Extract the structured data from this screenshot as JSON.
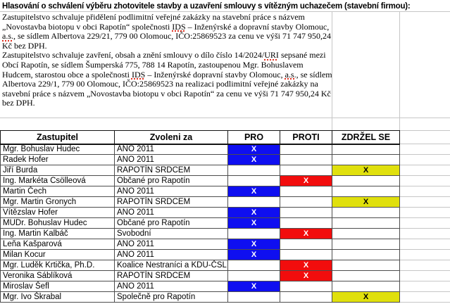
{
  "title": "Hlasování o schválení výběru zhotovitele stavby a uzavření smlouvy s vítězným uchazečem (stavební firmou):",
  "paragraphs": [
    "Zastupitelstvo schvaluje přidělení podlimitní veřejné zakázky na stavební práce s názvem „Novostavba biotopu v obci Rapotín“ společnosti IDS – Inženýrské a dopravní stavby Olomouc, a.s., se sídlem Albertova 229/21, 779 00 Olomouc, IČO:25869523 za cenu ve výši 71 747 950,24 Kč bez DPH.",
    "Zastupitelstvo schvaluje zavření, obsah a znění smlouvy o dílo číslo 14/2024/URI sepsané mezi Obcí Rapotín, se sídlem Šumperská 775, 788 14 Rapotín, zastoupenou Mgr. Bohuslavem Hudcem, starostou obce a společnosti IDS – Inženýrské dopravní stavby Olomouc, a.s., se sídlem Albertova 229/1, 779 00 Olomouc, IČO:25869523 na realizaci podlimitní veřejné zakázky na stavební práce s názvem „Novostavba biotopu v obci Rapotín“ za cenu ve výši 71 747 950,24 Kč bez DPH."
  ],
  "spellcheck_words": [
    "IDS",
    "a.s.",
    "URI"
  ],
  "table": {
    "headers": [
      "Zastupitel",
      "Zvoleni za",
      "PRO",
      "PROTI",
      "ZDRŽEL SE"
    ],
    "mark": "X",
    "rows": [
      {
        "name": "Mgr. Bohuslav Hudec",
        "party": "ANO 2011",
        "vote": "pro"
      },
      {
        "name": "Radek Hofer",
        "party": "ANO 2011",
        "vote": "pro"
      },
      {
        "name": "Jiří Burda",
        "party": "RAPOTÍN SRDCEM",
        "vote": "zdrzel"
      },
      {
        "name": "Ing. Markéta Csölleová",
        "party": "Občané pro Rapotín",
        "vote": "proti"
      },
      {
        "name": "Martin Čech",
        "party": "ANO 2011",
        "vote": "pro"
      },
      {
        "name": "Mgr. Martin Gronych",
        "party": "RAPOTÍN SRDCEM",
        "vote": "zdrzel"
      },
      {
        "name": "Vítězslav Hofer",
        "party": "ANO 2011",
        "vote": "pro"
      },
      {
        "name": "MUDr. Bohuslav Hudec",
        "party": "Občané pro Rapotín",
        "vote": "pro"
      },
      {
        "name": "Ing. Martin Kalbáč",
        "party": "Svobodní",
        "vote": "proti"
      },
      {
        "name": "Leňa Kašparová",
        "party": "ANO 2011",
        "vote": "pro"
      },
      {
        "name": "Milan Kocur",
        "party": "ANO 2011",
        "vote": "pro"
      },
      {
        "name": "Mgr. Luděk Krtička, Ph.D.",
        "party": "Koalice Nestraníci a KDU-ČSL",
        "vote": "proti"
      },
      {
        "name": "Veronika Sáblíková",
        "party": "RAPOTÍN SRDCEM",
        "vote": "proti"
      },
      {
        "name": "Miroslav Šefl",
        "party": "ANO 2011",
        "vote": "pro"
      },
      {
        "name": "Mgr. Ivo Škrabal",
        "party": "Společně pro Rapotín",
        "vote": "zdrzel"
      }
    ]
  },
  "colors": {
    "pro_fill": "#0f0ff0",
    "proti_fill": "#f20d0d",
    "zdrzel_fill": "#e0e00d",
    "pro_mark": "#ffffff",
    "proti_mark": "#ffffff",
    "zdrzel_mark": "#000000",
    "gridline": "#c6c6c6",
    "table_border": "#4d4d4d",
    "header_border": "#141414",
    "spellcheck": "#e03020"
  }
}
